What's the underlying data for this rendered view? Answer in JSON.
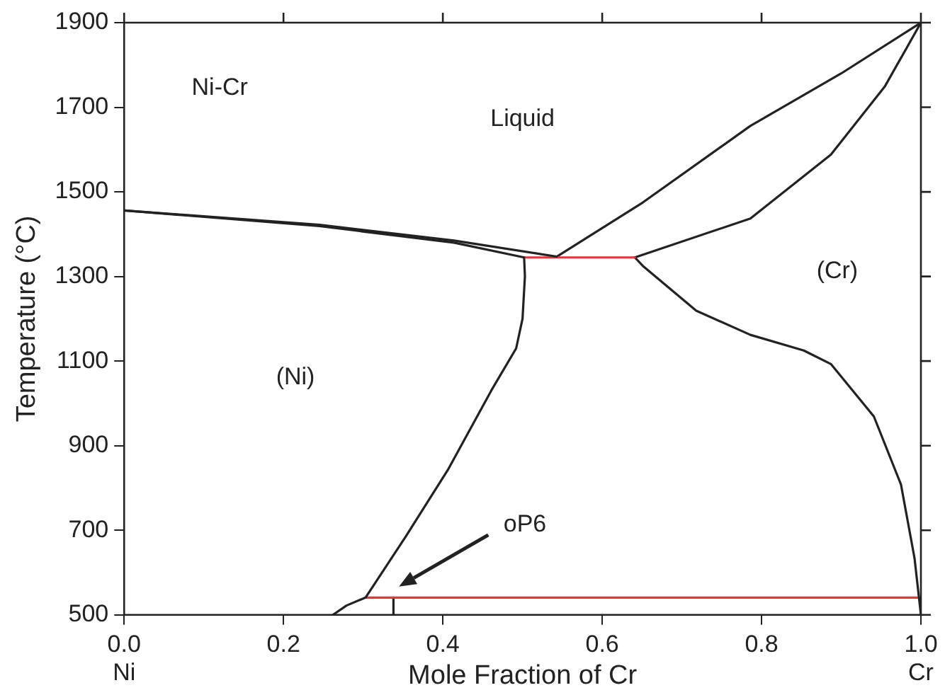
{
  "chart_data": {
    "type": "line",
    "xlabel": "Mole Fraction of Cr",
    "ylabel": "Temperature (°C)",
    "xlim": [
      0,
      1
    ],
    "ylim": [
      500,
      1900
    ],
    "xticks": [
      {
        "value": 0,
        "label": "0.0\nNi"
      },
      {
        "value": 0.2,
        "label": "0.2"
      },
      {
        "value": 0.4,
        "label": "0.4"
      },
      {
        "value": 0.6,
        "label": "0.6"
      },
      {
        "value": 0.8,
        "label": "0.8"
      },
      {
        "value": 1,
        "label": "1.0\nCr"
      }
    ],
    "yticks": [
      500,
      700,
      900,
      1100,
      1300,
      1500,
      1700,
      1900
    ],
    "grid": false,
    "legend": false,
    "marker": "none",
    "line_style": "solid",
    "series": [
      {
        "color": "#222222",
        "x": [
          0,
          0.245,
          0.414,
          0.543
        ],
        "values": [
          1456,
          1422,
          1385,
          1347
        ]
      },
      {
        "color": "#222222",
        "x": [
          0,
          0.245,
          0.414,
          0.502
        ],
        "values": [
          1456,
          1419,
          1380,
          1345
        ]
      },
      {
        "color": "#e0383b",
        "x": [
          0.502,
          0.641
        ],
        "values": [
          1345,
          1345
        ]
      },
      {
        "color": "#222222",
        "x": [
          0.543,
          0.651,
          0.786,
          0.9,
          1
        ],
        "values": [
          1347,
          1475,
          1656,
          1780,
          1900
        ]
      },
      {
        "color": "#222222",
        "x": [
          0.641,
          0.786,
          0.887,
          0.955,
          1
        ],
        "values": [
          1345,
          1437,
          1588,
          1750,
          1900
        ]
      },
      {
        "color": "#222222",
        "x": [
          0.502,
          0.503,
          0.5,
          0.492,
          0.461,
          0.407,
          0.353,
          0.303,
          0.279,
          0.262
        ],
        "values": [
          1345,
          1300,
          1200,
          1130,
          1031,
          845,
          684,
          541,
          522,
          500
        ]
      },
      {
        "color": "#222222",
        "x": [
          0.641,
          0.651,
          0.718,
          0.786,
          0.853,
          0.887,
          0.941,
          0.975,
          0.992,
          1
        ],
        "values": [
          1345,
          1325,
          1219,
          1162,
          1125,
          1093,
          969,
          808,
          634,
          500
        ]
      },
      {
        "color": "#e0383b",
        "x": [
          0.303,
          1
        ],
        "values": [
          541,
          541
        ]
      },
      {
        "color": "#222222",
        "x": [
          0.338,
          0.338
        ],
        "values": [
          500,
          541
        ]
      }
    ],
    "annotations": [
      "Ni-Cr",
      "Liquid",
      "(Cr)",
      "(Ni)",
      "oP6"
    ]
  }
}
